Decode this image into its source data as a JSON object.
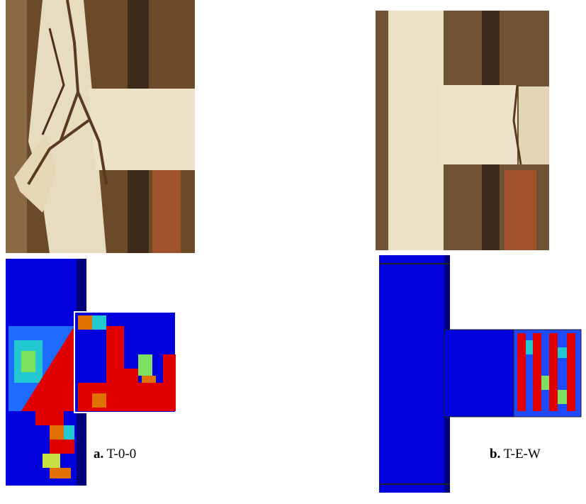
{
  "captions": [
    {
      "label": "a.",
      "text": "T-0-0"
    },
    {
      "label": "b.",
      "text": "T-E-W"
    }
  ]
}
